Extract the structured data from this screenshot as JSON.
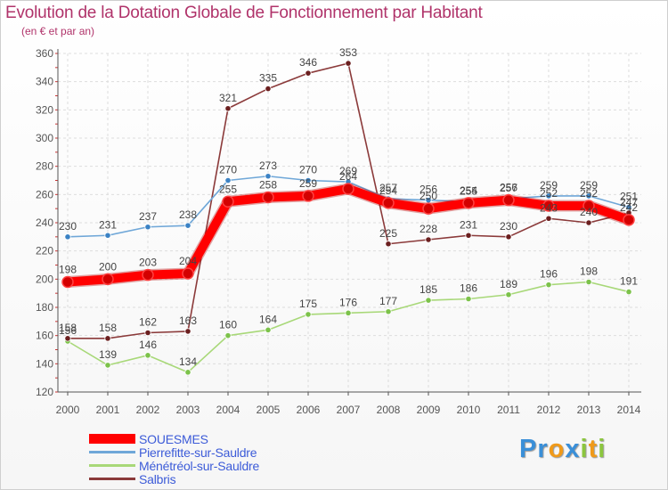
{
  "colors": {
    "title": "#b0336a",
    "axis": "#555555",
    "grid": "#dddddd",
    "legend_text": "#3c5bd8"
  },
  "logo": {
    "parts": [
      {
        "text": "Pr",
        "color": "#3a8fd8"
      },
      {
        "text": "o",
        "color": "#f09a1a"
      },
      {
        "text": "x",
        "color": "#3a8fd8"
      },
      {
        "text": "i",
        "color": "#8cc63f"
      },
      {
        "text": "t",
        "color": "#f09a1a"
      },
      {
        "text": "i",
        "color": "#8cc63f"
      }
    ]
  },
  "chart_data": {
    "type": "line",
    "title": "Evolution de la Dotation Globale de Fonctionnement par Habitant",
    "subtitle": "(en € et par an)",
    "x": [
      "2000",
      "2001",
      "2002",
      "2003",
      "2004",
      "2005",
      "2006",
      "2007",
      "2008",
      "2009",
      "2010",
      "2011",
      "2012",
      "2013",
      "2014"
    ],
    "ylim": [
      120,
      360
    ],
    "yticks": [
      120,
      140,
      160,
      180,
      200,
      220,
      240,
      260,
      280,
      300,
      320,
      340,
      360
    ],
    "grid": true,
    "legend_position": "bottom-left",
    "series": [
      {
        "name": "SOUESMES",
        "color": "#ff0000",
        "marker": "#d40000",
        "width": "thick",
        "values": [
          198,
          200,
          203,
          204,
          255,
          258,
          259,
          264,
          254,
          250,
          254,
          256,
          252,
          252,
          242
        ],
        "labels": [
          "198",
          "200",
          "203",
          "204",
          "255",
          "258",
          "259",
          "264",
          "254",
          "250",
          "254",
          "256",
          "252",
          "252",
          "242"
        ]
      },
      {
        "name": "Pierrefitte-sur-Sauldre",
        "color": "#6fa7d8",
        "marker": "#3b82c4",
        "width": "thin",
        "values": [
          230,
          231,
          237,
          238,
          270,
          273,
          270,
          269,
          257,
          256,
          255,
          257,
          259,
          259,
          251
        ],
        "labels": [
          "230",
          "231",
          "237",
          "238",
          "270",
          "273",
          "270",
          "269",
          "257",
          "256",
          "255",
          "257",
          "259",
          "259",
          "251"
        ]
      },
      {
        "name": "Ménétréol-sur-Sauldre",
        "color": "#a8d878",
        "marker": "#7cc24a",
        "width": "thin",
        "values": [
          156,
          139,
          146,
          134,
          160,
          164,
          175,
          176,
          177,
          185,
          186,
          189,
          196,
          198,
          191
        ],
        "labels": [
          "156",
          "139",
          "146",
          "134",
          "160",
          "164",
          "175",
          "176",
          "177",
          "185",
          "186",
          "189",
          "196",
          "198",
          "191"
        ]
      },
      {
        "name": "Salbris",
        "color": "#8b3a3a",
        "marker": "#6b1f1f",
        "width": "thin",
        "values": [
          158,
          158,
          162,
          163,
          321,
          335,
          346,
          353,
          225,
          228,
          231,
          230,
          243,
          240,
          247
        ],
        "labels": [
          "158",
          "158",
          "162",
          "163",
          "321",
          "335",
          "346",
          "353",
          "225",
          "228",
          "231",
          "230",
          "243",
          "240",
          "247"
        ]
      }
    ]
  }
}
